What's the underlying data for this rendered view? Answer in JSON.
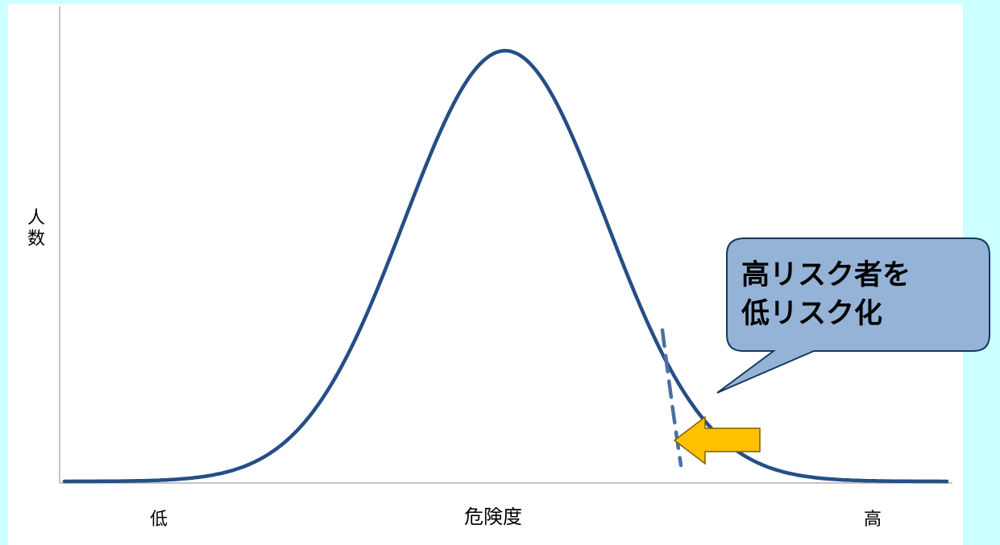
{
  "y_axis_label": "人数",
  "x_axis_labels": {
    "low": "低",
    "center": "危険度",
    "high": "高"
  },
  "callout": {
    "text": "高リスク者を\n低リスク化",
    "fill_color": "#95b3d7",
    "border_color": "#17375e"
  },
  "colors": {
    "background": "#ccffff",
    "panel": "#ffffff",
    "curve": "#254e86",
    "arrow_fill": "#ffc000",
    "arrow_stroke": "#7f6000"
  }
}
